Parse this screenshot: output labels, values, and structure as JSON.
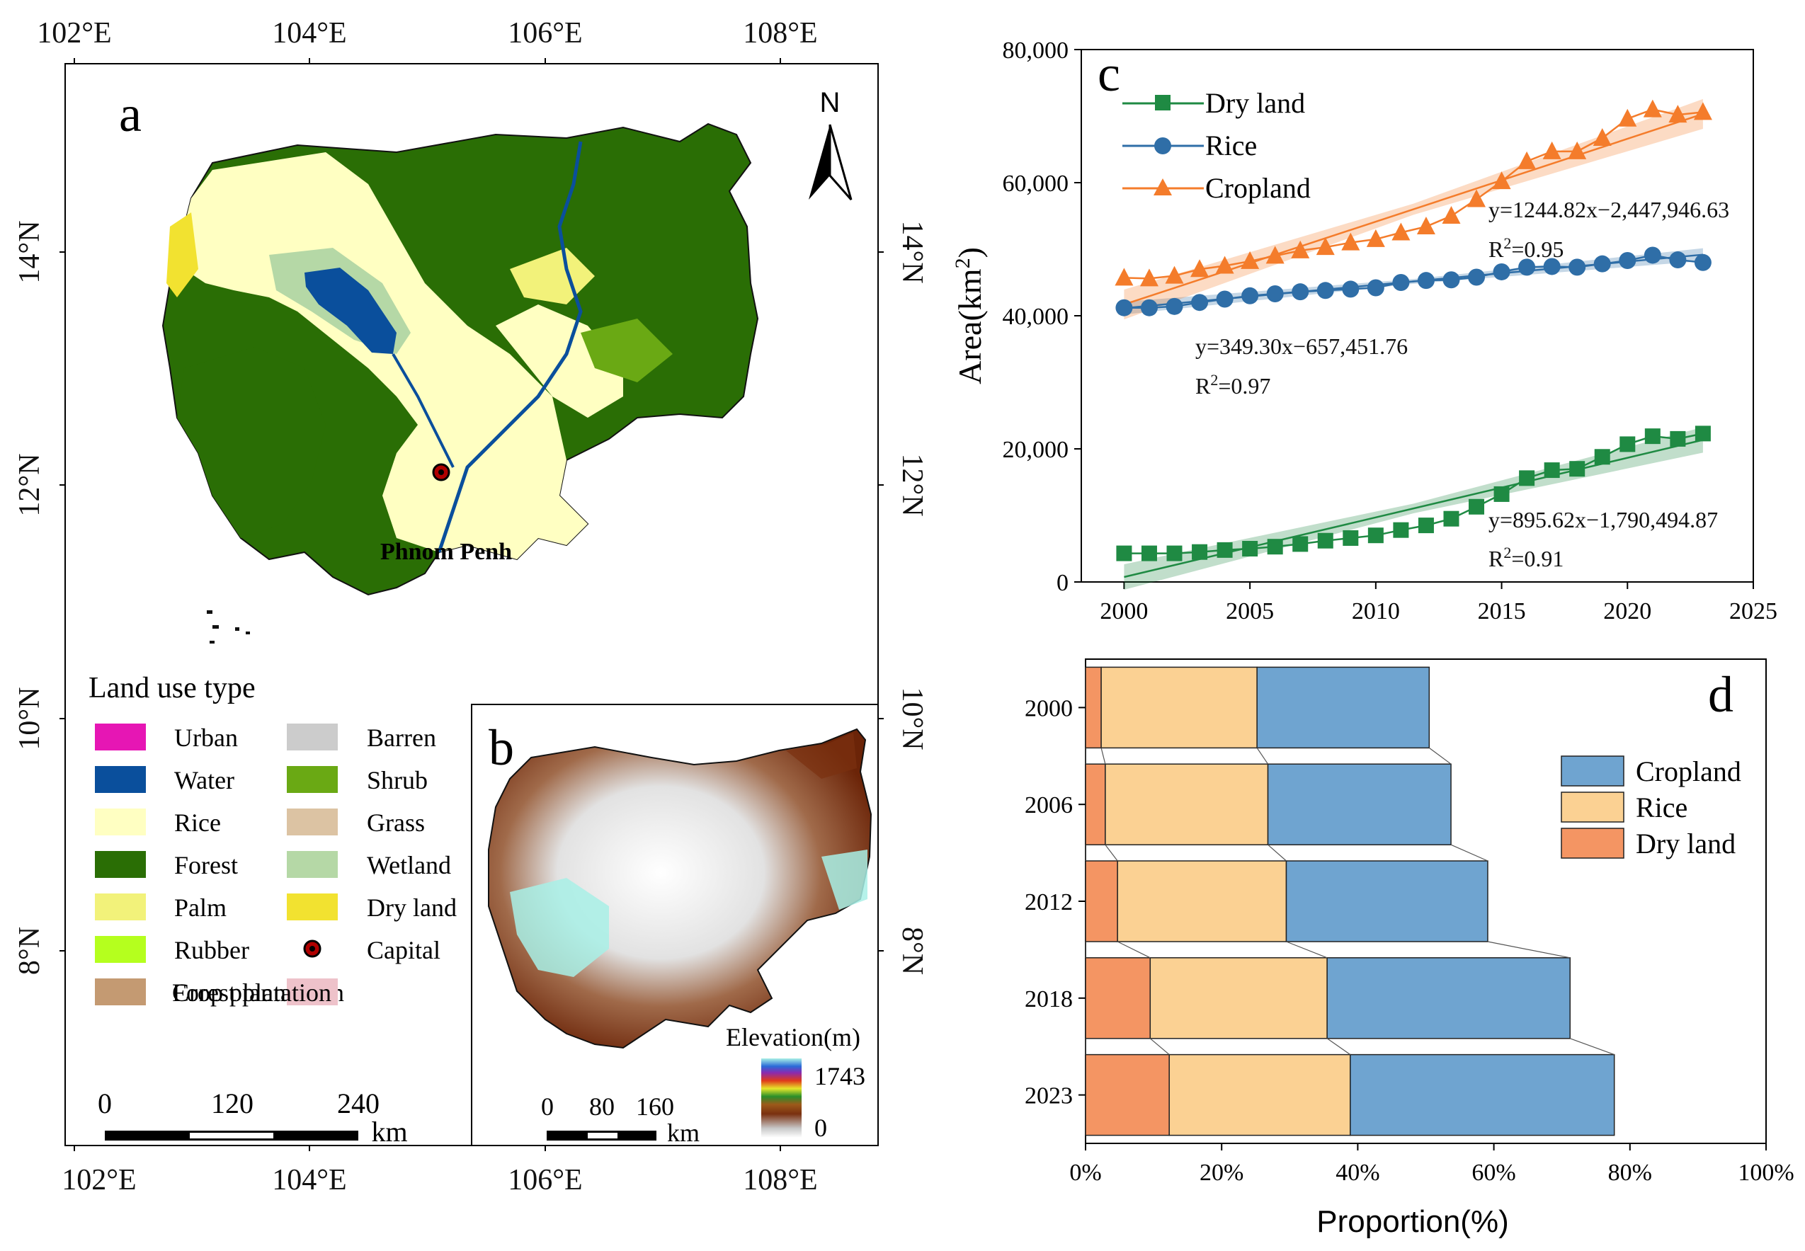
{
  "colors": {
    "urban": "#e616b4",
    "water": "#0a4f9c",
    "rice": "#ffffc2",
    "forest": "#2a6e05",
    "palm": "#f2f27a",
    "rubber": "#b5ff1e",
    "forest_plantation": "#c49a72",
    "crop_plantation": "#eec2ca",
    "barren": "#cccccc",
    "shrub": "#6aa914",
    "grass": "#dcc3a3",
    "wetland": "#b5d8a6",
    "dry_land": "#f2e230",
    "dryland_line": "#1f8a43",
    "rice_line": "#2f6ea7",
    "cropland_line": "#f47c2b",
    "bar_cropland": "#6fa4d0",
    "bar_rice": "#fbd193",
    "bar_dryland": "#f49563"
  },
  "map_a": {
    "panel_label": "a",
    "north_label": "N",
    "lon_labels_top": [
      "102°E",
      "104°E",
      "106°E",
      "108°E"
    ],
    "lon_labels_bottom": [
      "102°E",
      "104°E",
      "106°E",
      "108°E"
    ],
    "lat_labels_left": [
      "14°N",
      "12°N",
      "10°N",
      "8°N"
    ],
    "lat_labels_right": [
      "14°N",
      "12°N",
      "10°N",
      "8°N"
    ],
    "capital_label": "Phnom Penh",
    "legend_title": "Land use type",
    "legend": [
      {
        "label": "Urban",
        "color": "#e616b4",
        "icon": "swatch"
      },
      {
        "label": "Barren",
        "color": "#cccccc",
        "icon": "swatch"
      },
      {
        "label": "Water",
        "color": "#0a4f9c",
        "icon": "swatch"
      },
      {
        "label": "Shrub",
        "color": "#6aa914",
        "icon": "swatch"
      },
      {
        "label": "Rice",
        "color": "#ffffc2",
        "icon": "swatch"
      },
      {
        "label": "Grass",
        "color": "#dcc3a3",
        "icon": "swatch"
      },
      {
        "label": "Forest",
        "color": "#2a6e05",
        "icon": "swatch"
      },
      {
        "label": "Wetland",
        "color": "#b5d8a6",
        "icon": "swatch"
      },
      {
        "label": "Palm",
        "color": "#f2f27a",
        "icon": "swatch"
      },
      {
        "label": "Dry land",
        "color": "#f2e230",
        "icon": "swatch"
      },
      {
        "label": "Rubber",
        "color": "#b5ff1e",
        "icon": "swatch"
      },
      {
        "label": "Capital",
        "color": "#b00000",
        "icon": "capital-dot-icon"
      },
      {
        "label": "Forest plantation",
        "color": "#c49a72",
        "icon": "swatch"
      },
      {
        "label": "Crop plantation",
        "color": "#eec2ca",
        "icon": "swatch"
      }
    ],
    "scale_ticks": [
      "0",
      "120",
      "240"
    ],
    "scale_unit": "km"
  },
  "map_b": {
    "panel_label": "b",
    "elevation_title": "Elevation(m)",
    "elevation_max": "1743",
    "elevation_min": "0",
    "scale_ticks": [
      "0",
      "80",
      "160"
    ],
    "scale_unit": "km"
  },
  "chart_data": [
    {
      "panel_label": "c",
      "type": "line",
      "xlabel": "",
      "ylabel": "Area(km2)",
      "ylabel_main": "Area(km",
      "ylabel_sup": "2",
      "ylabel_close": ")",
      "xlim": [
        1998.3,
        2025
      ],
      "ylim": [
        0,
        80000
      ],
      "x_ticks": [
        2000,
        2005,
        2010,
        2015,
        2020,
        2025
      ],
      "x_tick_labels": [
        "2000",
        "2005",
        "2010",
        "2015",
        "2020",
        "2025"
      ],
      "y_ticks": [
        0,
        20000,
        40000,
        60000,
        80000
      ],
      "y_tick_labels": [
        "0",
        "20,000",
        "40,000",
        "60,000",
        "80,000"
      ],
      "x": [
        2000,
        2001,
        2002,
        2003,
        2004,
        2005,
        2006,
        2007,
        2008,
        2009,
        2010,
        2011,
        2012,
        2013,
        2014,
        2015,
        2016,
        2017,
        2018,
        2019,
        2020,
        2021,
        2022,
        2023
      ],
      "series": [
        {
          "name": "Dry land",
          "marker": "square",
          "color": "#1f8a43",
          "values": [
            4300,
            4300,
            4300,
            4500,
            4800,
            5000,
            5300,
            5700,
            6200,
            6600,
            7000,
            7800,
            8500,
            9500,
            11300,
            13200,
            15600,
            16800,
            17000,
            18800,
            20700,
            21900,
            21500,
            22300
          ],
          "fit": {
            "slope": 895.62,
            "intercept": -1790494.87,
            "equation": "y=895.62x−1,790,494.87",
            "r2_prefix": "R",
            "r2_sup": "2",
            "r2_value": "=0.91"
          }
        },
        {
          "name": "Rice",
          "marker": "circle",
          "color": "#2f6ea7",
          "values": [
            41200,
            41200,
            41400,
            42000,
            42500,
            43000,
            43300,
            43600,
            43800,
            44000,
            44200,
            45000,
            45300,
            45400,
            45800,
            46600,
            47300,
            47400,
            47300,
            47800,
            48300,
            49100,
            48400,
            48000
          ],
          "fit": {
            "slope": 349.3,
            "intercept": -657451.76,
            "equation": "y=349.30x−657,451.76",
            "r2_prefix": "R",
            "r2_sup": "2",
            "r2_value": "=0.97"
          }
        },
        {
          "name": "Cropland",
          "marker": "triangle",
          "color": "#f47c2b",
          "values": [
            45700,
            45600,
            46000,
            47000,
            47500,
            48200,
            49000,
            49800,
            50300,
            51000,
            51500,
            52500,
            53400,
            55000,
            57500,
            60200,
            63200,
            64700,
            64700,
            66700,
            69600,
            71000,
            70200,
            70600
          ],
          "fit": {
            "slope": 1244.82,
            "intercept": -2447946.63,
            "equation": "y=1244.82x−2,447,946.63",
            "r2_prefix": "R",
            "r2_sup": "2",
            "r2_value": "=0.95"
          }
        }
      ],
      "legend": "top-left"
    },
    {
      "panel_label": "d",
      "type": "bar",
      "orientation": "horizontal",
      "stacked": true,
      "xlabel": "Proportion(%)",
      "xlim": [
        0,
        100
      ],
      "x_ticks": [
        0,
        20,
        40,
        60,
        80,
        100
      ],
      "x_tick_labels": [
        "0%",
        "20%",
        "40%",
        "60%",
        "80%",
        "100%"
      ],
      "categories": [
        "2000",
        "2006",
        "2012",
        "2018",
        "2023"
      ],
      "series": [
        {
          "name": "Dry land",
          "color": "#f49563",
          "values": [
            2.3,
            2.9,
            4.7,
            9.5,
            12.3
          ]
        },
        {
          "name": "Rice",
          "color": "#fbd193",
          "values": [
            22.9,
            23.9,
            24.8,
            26.0,
            26.6
          ]
        },
        {
          "name": "Cropland",
          "color": "#6fa4d0",
          "values": [
            25.3,
            26.9,
            29.6,
            35.7,
            38.8
          ]
        }
      ],
      "legend_order": [
        "Cropland",
        "Rice",
        "Dry land"
      ],
      "legend": "top-right"
    }
  ]
}
